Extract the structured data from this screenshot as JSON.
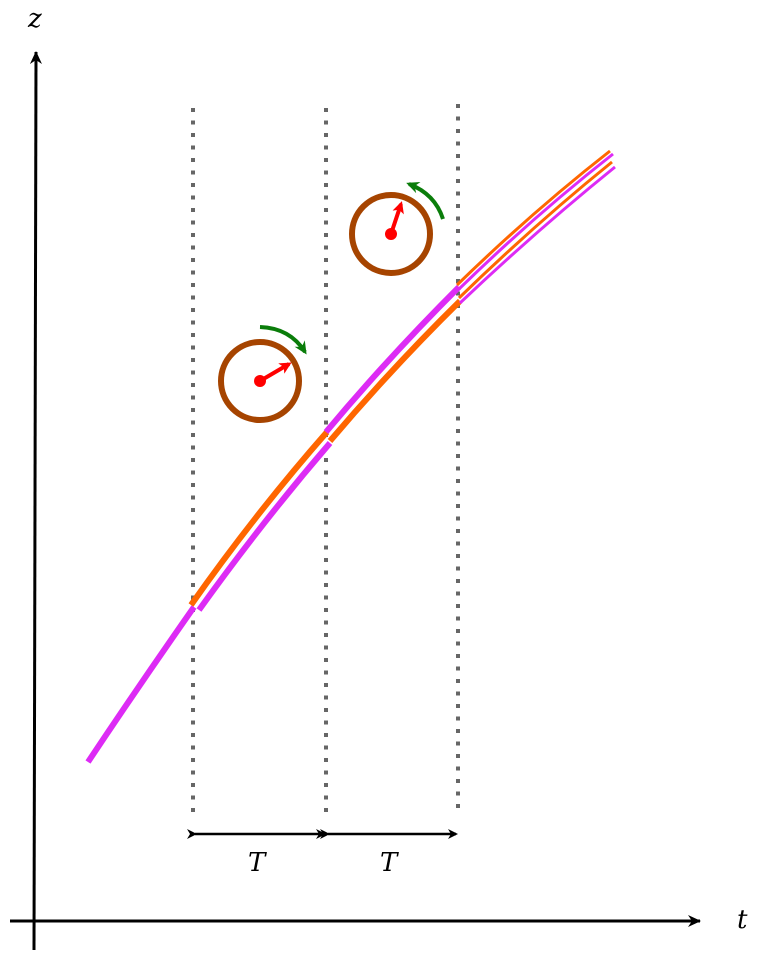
{
  "axes": {
    "x_label": "t",
    "y_label": "z"
  },
  "intervals": [
    {
      "label": "T"
    },
    {
      "label": "T"
    }
  ],
  "colors": {
    "worldline_a": "#dd2bf5",
    "worldline_b": "#ff6600",
    "clock_ring": "#a64400",
    "clock_hand": "#ff0000",
    "rotation_arrow": "#0a7d0a",
    "dotted_line": "#666666",
    "axis": "#000000"
  },
  "clocks": [
    {
      "rotation": "clockwise"
    },
    {
      "rotation": "counterclockwise"
    }
  ]
}
